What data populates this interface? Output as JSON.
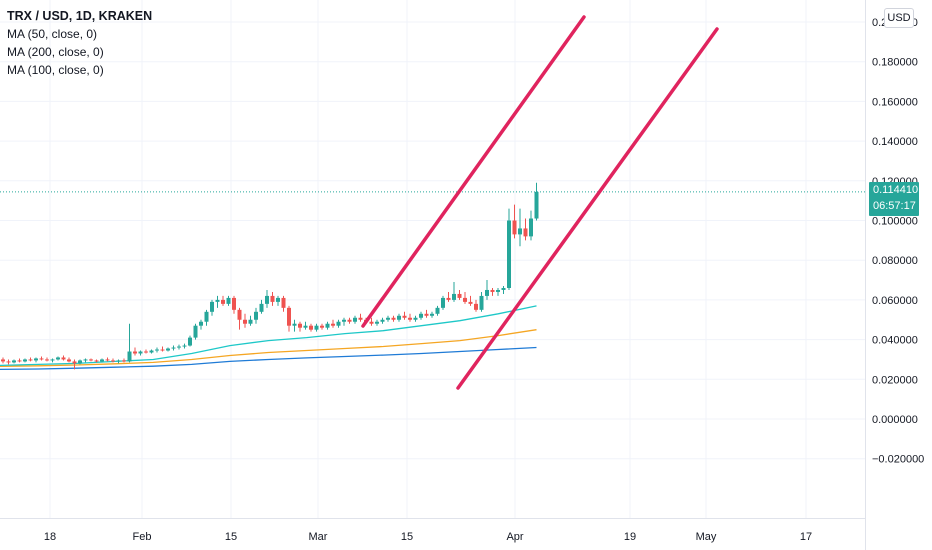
{
  "legend": {
    "title": "TRX / USD, 1D, KRAKEN",
    "ma50": "MA (50, close, 0)",
    "ma200": "MA (200, close, 0)",
    "ma100": "MA (100, close, 0)"
  },
  "currency_badge": "USD",
  "last_price": {
    "value": "0.114410",
    "countdown": "06:57:17"
  },
  "colors": {
    "up": "#26a69a",
    "down": "#ef5350",
    "ma50": "#1ec8c8",
    "ma100": "#f5a623",
    "ma200": "#1f7bd6",
    "trendline": "#e0245e"
  },
  "chart_data": {
    "type": "candlestick",
    "y_ticks": [
      "0.200000",
      "0.180000",
      "0.160000",
      "0.140000",
      "0.120000",
      "0.100000",
      "0.080000",
      "0.060000",
      "0.040000",
      "0.020000",
      "0.000000",
      "−0.020000"
    ],
    "x_ticks": [
      "18",
      "Feb",
      "15",
      "Mar",
      "15",
      "Apr",
      "19",
      "May",
      "17"
    ],
    "ylim": [
      -0.03,
      0.215
    ],
    "candles": [
      [
        0.03,
        0.031,
        0.028,
        0.029
      ],
      [
        0.029,
        0.03,
        0.0275,
        0.0285
      ],
      [
        0.0285,
        0.03,
        0.028,
        0.0295
      ],
      [
        0.0295,
        0.0305,
        0.0285,
        0.029
      ],
      [
        0.029,
        0.0305,
        0.0285,
        0.03
      ],
      [
        0.03,
        0.031,
        0.029,
        0.0295
      ],
      [
        0.0295,
        0.031,
        0.0285,
        0.0305
      ],
      [
        0.0305,
        0.0315,
        0.0295,
        0.03
      ],
      [
        0.03,
        0.031,
        0.029,
        0.0295
      ],
      [
        0.0295,
        0.0305,
        0.0285,
        0.03
      ],
      [
        0.03,
        0.0315,
        0.0295,
        0.031
      ],
      [
        0.031,
        0.032,
        0.0295,
        0.03
      ],
      [
        0.03,
        0.031,
        0.0285,
        0.029
      ],
      [
        0.029,
        0.03,
        0.025,
        0.028
      ],
      [
        0.028,
        0.03,
        0.0275,
        0.0295
      ],
      [
        0.0295,
        0.0305,
        0.0285,
        0.03
      ],
      [
        0.03,
        0.0305,
        0.029,
        0.0295
      ],
      [
        0.0295,
        0.03,
        0.0285,
        0.029
      ],
      [
        0.029,
        0.0305,
        0.0285,
        0.03
      ],
      [
        0.03,
        0.031,
        0.029,
        0.0295
      ],
      [
        0.0295,
        0.0305,
        0.0285,
        0.029
      ],
      [
        0.029,
        0.03,
        0.028,
        0.0295
      ],
      [
        0.0295,
        0.0305,
        0.0285,
        0.029
      ],
      [
        0.029,
        0.048,
        0.0285,
        0.034
      ],
      [
        0.034,
        0.036,
        0.032,
        0.033
      ],
      [
        0.033,
        0.0345,
        0.032,
        0.034
      ],
      [
        0.034,
        0.035,
        0.033,
        0.0335
      ],
      [
        0.0335,
        0.035,
        0.033,
        0.0345
      ],
      [
        0.0345,
        0.036,
        0.0335,
        0.035
      ],
      [
        0.035,
        0.0365,
        0.034,
        0.0345
      ],
      [
        0.0345,
        0.036,
        0.034,
        0.0355
      ],
      [
        0.0355,
        0.037,
        0.0345,
        0.036
      ],
      [
        0.036,
        0.0375,
        0.035,
        0.0365
      ],
      [
        0.0365,
        0.038,
        0.0355,
        0.037
      ],
      [
        0.037,
        0.042,
        0.0365,
        0.041
      ],
      [
        0.041,
        0.048,
        0.04,
        0.047
      ],
      [
        0.047,
        0.05,
        0.045,
        0.049
      ],
      [
        0.049,
        0.055,
        0.047,
        0.054
      ],
      [
        0.054,
        0.06,
        0.052,
        0.059
      ],
      [
        0.059,
        0.062,
        0.056,
        0.06
      ],
      [
        0.06,
        0.062,
        0.057,
        0.058
      ],
      [
        0.058,
        0.062,
        0.057,
        0.061
      ],
      [
        0.061,
        0.062,
        0.053,
        0.055
      ],
      [
        0.055,
        0.056,
        0.045,
        0.05
      ],
      [
        0.05,
        0.053,
        0.046,
        0.048
      ],
      [
        0.048,
        0.052,
        0.047,
        0.05
      ],
      [
        0.05,
        0.056,
        0.048,
        0.054
      ],
      [
        0.054,
        0.06,
        0.053,
        0.058
      ],
      [
        0.058,
        0.065,
        0.056,
        0.062
      ],
      [
        0.062,
        0.064,
        0.057,
        0.059
      ],
      [
        0.059,
        0.062,
        0.057,
        0.061
      ],
      [
        0.061,
        0.062,
        0.054,
        0.056
      ],
      [
        0.056,
        0.057,
        0.044,
        0.047
      ],
      [
        0.047,
        0.05,
        0.044,
        0.048
      ],
      [
        0.048,
        0.049,
        0.044,
        0.046
      ],
      [
        0.046,
        0.049,
        0.045,
        0.047
      ],
      [
        0.047,
        0.048,
        0.044,
        0.045
      ],
      [
        0.045,
        0.048,
        0.044,
        0.047
      ],
      [
        0.047,
        0.048,
        0.045,
        0.046
      ],
      [
        0.046,
        0.049,
        0.045,
        0.048
      ],
      [
        0.048,
        0.05,
        0.046,
        0.047
      ],
      [
        0.047,
        0.05,
        0.046,
        0.049
      ],
      [
        0.049,
        0.051,
        0.047,
        0.05
      ],
      [
        0.05,
        0.051,
        0.048,
        0.049
      ],
      [
        0.049,
        0.052,
        0.048,
        0.051
      ],
      [
        0.051,
        0.053,
        0.049,
        0.05
      ],
      [
        0.05,
        0.051,
        0.048,
        0.049
      ],
      [
        0.049,
        0.051,
        0.047,
        0.048
      ],
      [
        0.048,
        0.05,
        0.047,
        0.049
      ],
      [
        0.049,
        0.051,
        0.048,
        0.05
      ],
      [
        0.05,
        0.052,
        0.049,
        0.051
      ],
      [
        0.051,
        0.052,
        0.049,
        0.05
      ],
      [
        0.05,
        0.053,
        0.049,
        0.052
      ],
      [
        0.052,
        0.054,
        0.05,
        0.051
      ],
      [
        0.051,
        0.053,
        0.049,
        0.05
      ],
      [
        0.05,
        0.052,
        0.049,
        0.051
      ],
      [
        0.051,
        0.054,
        0.05,
        0.053
      ],
      [
        0.053,
        0.055,
        0.051,
        0.052
      ],
      [
        0.052,
        0.054,
        0.051,
        0.053
      ],
      [
        0.053,
        0.057,
        0.052,
        0.056
      ],
      [
        0.056,
        0.062,
        0.055,
        0.061
      ],
      [
        0.061,
        0.064,
        0.059,
        0.06
      ],
      [
        0.06,
        0.069,
        0.059,
        0.063
      ],
      [
        0.063,
        0.065,
        0.06,
        0.061
      ],
      [
        0.061,
        0.064,
        0.058,
        0.059
      ],
      [
        0.059,
        0.062,
        0.057,
        0.058
      ],
      [
        0.058,
        0.06,
        0.054,
        0.055
      ],
      [
        0.055,
        0.064,
        0.054,
        0.062
      ],
      [
        0.062,
        0.07,
        0.06,
        0.065
      ],
      [
        0.065,
        0.066,
        0.062,
        0.064
      ],
      [
        0.064,
        0.066,
        0.062,
        0.065
      ],
      [
        0.065,
        0.067,
        0.063,
        0.066
      ],
      [
        0.066,
        0.106,
        0.065,
        0.1
      ],
      [
        0.1,
        0.108,
        0.091,
        0.093
      ],
      [
        0.093,
        0.106,
        0.087,
        0.096
      ],
      [
        0.096,
        0.101,
        0.09,
        0.092
      ],
      [
        0.092,
        0.105,
        0.09,
        0.101
      ],
      [
        0.101,
        0.119,
        0.1,
        0.1144
      ]
    ],
    "ma50": [
      0.027,
      0.0275,
      0.028,
      0.029,
      0.03,
      0.033,
      0.037,
      0.0395,
      0.041,
      0.043,
      0.0445,
      0.047,
      0.0495,
      0.053,
      0.057
    ],
    "ma100": [
      0.0265,
      0.0268,
      0.0272,
      0.0278,
      0.0285,
      0.03,
      0.032,
      0.0335,
      0.0345,
      0.0355,
      0.0365,
      0.038,
      0.0395,
      0.042,
      0.045
    ],
    "ma200": [
      0.025,
      0.0252,
      0.0256,
      0.0261,
      0.0266,
      0.0275,
      0.029,
      0.03,
      0.0308,
      0.0315,
      0.0322,
      0.033,
      0.034,
      0.035,
      0.036
    ],
    "trendlines": [
      {
        "from": [
          0.0435,
          "Mar 7"
        ],
        "to": [
          0.2035,
          "Apr 5"
        ]
      },
      {
        "from": [
          0.012,
          "Mar 22"
        ],
        "to": [
          0.197,
          "Apr 20"
        ]
      }
    ]
  }
}
